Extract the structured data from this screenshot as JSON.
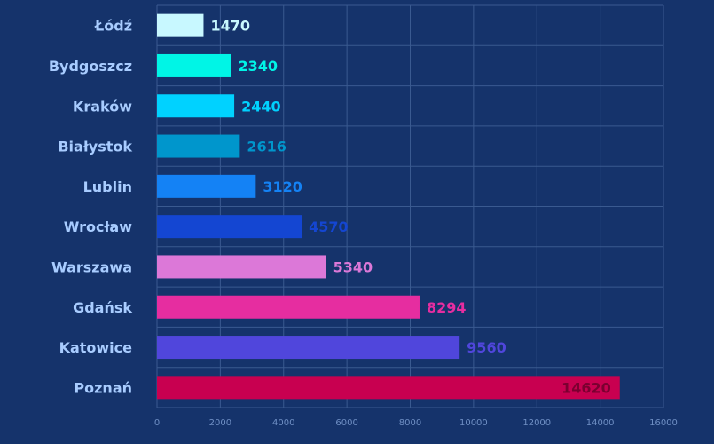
{
  "chart_data": {
    "type": "bar",
    "orientation": "horizontal",
    "categories": [
      "Łódź",
      "Bydgoszcz",
      "Kraków ",
      "Białystok",
      "Lublin",
      "Wrocław",
      "Warszawa",
      "Gdańsk",
      "Katowice",
      "Poznań"
    ],
    "values": [
      1470,
      2340,
      2440,
      2616,
      3120,
      4570,
      5340,
      8294,
      9560,
      14620
    ],
    "value_labels": [
      "1470",
      "2340",
      "2440",
      "2616",
      "3120",
      "4570",
      "5340",
      "8294",
      "9560",
      "14620"
    ],
    "colors": [
      "#c8f8ff",
      "#00f5e6",
      "#00d2ff",
      "#0096cc",
      "#1482f5",
      "#1446d2",
      "#dc78d8",
      "#e62da0",
      "#5046dc",
      "#c80050"
    ],
    "label_inside": [
      false,
      false,
      false,
      false,
      false,
      false,
      false,
      false,
      false,
      true
    ],
    "xlim": [
      0,
      16000
    ],
    "xticks": [
      0,
      2000,
      4000,
      6000,
      8000,
      10000,
      12000,
      14000,
      16000
    ],
    "xtick_labels": [
      "0",
      "2000",
      "4000",
      "6000",
      "8000",
      "10000",
      "12000",
      "14000",
      "16000"
    ],
    "grid": true,
    "title": "",
    "xlabel": "",
    "ylabel": ""
  },
  "style": {
    "background": "#15336b",
    "grid_color": "#3a5a90",
    "category_label_color": "#a8ccff",
    "tick_label_color": "#6f8fc4",
    "inside_label_color": "#7a0030"
  }
}
